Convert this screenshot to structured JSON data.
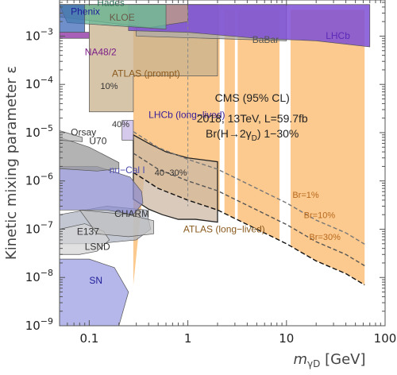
{
  "chart_data": {
    "type": "area",
    "title": "",
    "xlabel": "m_{γD} [GeV]",
    "ylabel": "Kinetic mixing parameter ε",
    "xscale": "log",
    "yscale": "log",
    "xlim": [
      0.05,
      100
    ],
    "ylim": [
      1e-09,
      0.0056
    ],
    "grid": false,
    "x_ticks": [
      {
        "value": 0.1,
        "label": "0.1"
      },
      {
        "value": 1,
        "label": "1"
      },
      {
        "value": 10,
        "label": "10"
      },
      {
        "value": 100,
        "label": "100"
      }
    ],
    "y_ticks": [
      {
        "value": 1e-09,
        "base": "10",
        "exp": "−9"
      },
      {
        "value": 1e-08,
        "base": "10",
        "exp": "−8"
      },
      {
        "value": 1e-07,
        "base": "10",
        "exp": "−7"
      },
      {
        "value": 1e-06,
        "base": "10",
        "exp": "−6"
      },
      {
        "value": 1e-05,
        "base": "10",
        "exp": "−5"
      },
      {
        "value": 0.0001,
        "base": "10",
        "exp": "−4"
      },
      {
        "value": 0.001,
        "base": "10",
        "exp": "−3"
      }
    ],
    "annotation_text": {
      "cms_title": "CMS (95% CL)",
      "cms_line2": "2018, 13TeV, L=59.7fb",
      "cms_line3": "Br(H→2γ",
      "cms_line3_sub": "D",
      "cms_line3_tail": ") 1−30%"
    },
    "series": [
      {
        "name": "CMS Br 1–30%",
        "kind": "band",
        "color": "#fbbf7a",
        "segments": [
          [
            0.28,
            2.1
          ],
          [
            2.35,
            3.0
          ],
          [
            3.2,
            8.5
          ],
          [
            11.0,
            62.0
          ]
        ],
        "upper": 0.0035,
        "lower_Br30": [
          [
            0.28,
            1.5e-06
          ],
          [
            0.5,
            7e-07
          ],
          [
            1,
            4e-07
          ],
          [
            2,
            2.5e-07
          ],
          [
            5,
            1e-07
          ],
          [
            10,
            5e-08
          ],
          [
            20,
            2.2e-08
          ],
          [
            40,
            1.2e-08
          ],
          [
            62,
            7e-09
          ]
        ]
      },
      {
        "name": "ATLAS (prompt)",
        "kind": "region",
        "color": "#c9b28e",
        "points": [
          [
            0.1,
            0.0045
          ],
          [
            0.1,
            2.7e-05
          ],
          [
            0.28,
            2.7e-05
          ],
          [
            0.28,
            0.00015
          ],
          [
            2.0,
            0.00015
          ],
          [
            2.0,
            0.0045
          ]
        ]
      },
      {
        "name": "LHCb (long-lived)",
        "kind": "region",
        "color": "#c8b8e6",
        "points": [
          [
            0.215,
            1.8e-05
          ],
          [
            0.28,
            1.8e-05
          ],
          [
            0.28,
            7e-06
          ],
          [
            0.215,
            7e-06
          ]
        ]
      },
      {
        "name": "ATLAS (long-lived)",
        "kind": "region",
        "color": "#cdb8a4",
        "points": [
          [
            0.28,
            9e-06
          ],
          [
            0.4,
            6e-06
          ],
          [
            0.6,
            4e-06
          ],
          [
            1,
            3e-06
          ],
          [
            2,
            2.5e-06
          ],
          [
            2,
            1.4e-07
          ],
          [
            1.2,
            1.6e-07
          ],
          [
            0.8,
            1.6e-07
          ],
          [
            0.55,
            2e-07
          ],
          [
            0.4,
            2.6e-07
          ],
          [
            0.28,
            4.2e-07
          ]
        ]
      },
      {
        "name": "E137",
        "kind": "region",
        "color": "#aeb4c2",
        "points": [
          [
            0.05,
            2e-07
          ],
          [
            0.15,
            3e-07
          ],
          [
            0.38,
            2.5e-07
          ],
          [
            0.42,
            1e-07
          ],
          [
            0.3,
            6e-08
          ],
          [
            0.12,
            5e-08
          ],
          [
            0.05,
            5e-08
          ]
        ]
      },
      {
        "name": "LSND",
        "kind": "region",
        "color": "#d6d6d6",
        "points": [
          [
            0.05,
            1e-07
          ],
          [
            0.09,
            1.3e-07
          ],
          [
            0.14,
            9e-08
          ],
          [
            0.16,
            6e-08
          ],
          [
            0.12,
            3.5e-08
          ],
          [
            0.08,
            3e-08
          ],
          [
            0.05,
            3e-08
          ]
        ]
      },
      {
        "name": "CHARM",
        "kind": "region",
        "color": "#c0c0c0",
        "points": [
          [
            0.08,
            2.5e-07
          ],
          [
            0.25,
            2e-07
          ],
          [
            0.45,
            1.5e-07
          ],
          [
            0.45,
            8e-08
          ],
          [
            0.25,
            7e-08
          ],
          [
            0.12,
            8e-08
          ]
        ]
      },
      {
        "name": "nu-Cal I",
        "kind": "region",
        "color": "#8d8fd0",
        "points": [
          [
            0.05,
            2e-06
          ],
          [
            0.12,
            2e-06
          ],
          [
            0.26,
            1.2e-06
          ],
          [
            0.34,
            6e-07
          ],
          [
            0.35,
            3.5e-07
          ],
          [
            0.28,
            2e-07
          ],
          [
            0.15,
            2.5e-07
          ],
          [
            0.05,
            2.5e-07
          ]
        ]
      },
      {
        "name": "U70",
        "kind": "region",
        "color": "#9a9a9a",
        "points": [
          [
            0.05,
            8e-06
          ],
          [
            0.1,
            5e-06
          ],
          [
            0.2,
            2.4e-06
          ],
          [
            0.2,
            1.8e-06
          ],
          [
            0.12,
            1.6e-06
          ],
          [
            0.05,
            1.8e-06
          ]
        ]
      },
      {
        "name": "Orsay",
        "kind": "region",
        "color": "#b8b8b8",
        "points": [
          [
            0.05,
            1.1e-05
          ],
          [
            0.085,
            8e-06
          ],
          [
            0.085,
            6.5e-06
          ],
          [
            0.05,
            7e-06
          ]
        ]
      },
      {
        "name": "SN",
        "kind": "region",
        "color": "#9c9ee2",
        "points": [
          [
            0.05,
            2.4e-08
          ],
          [
            0.1,
            2.4e-08
          ],
          [
            0.18,
            1.6e-08
          ],
          [
            0.25,
            5e-09
          ],
          [
            0.2,
            1e-09
          ],
          [
            0.05,
            1e-09
          ]
        ]
      },
      {
        "name": "BaBar",
        "kind": "region",
        "color": "#aaaaaa",
        "points": [
          [
            0.3,
            0.001
          ],
          [
            10,
            0.0008
          ],
          [
            10,
            0.0045
          ],
          [
            0.3,
            0.0045
          ]
        ]
      },
      {
        "name": "LHCb",
        "kind": "region",
        "color": "#7e4fd6",
        "points": [
          [
            0.25,
            0.0013
          ],
          [
            1,
            0.0012
          ],
          [
            5,
            0.0009
          ],
          [
            20,
            0.0008
          ],
          [
            70,
            0.0006
          ],
          [
            70,
            0.0045
          ],
          [
            0.25,
            0.0045
          ]
        ]
      },
      {
        "name": "NA48/2",
        "kind": "region",
        "color": "#8a2aa0",
        "points": [
          [
            0.05,
            0.0009
          ],
          [
            0.1,
            0.0009
          ],
          [
            0.1,
            0.0012
          ],
          [
            0.05,
            0.0012
          ]
        ]
      },
      {
        "name": "KLOE",
        "kind": "region",
        "color": "#c0a080",
        "points": [
          [
            0.05,
            0.0025
          ],
          [
            0.4,
            0.0015
          ],
          [
            1,
            0.002
          ],
          [
            1,
            0.0045
          ],
          [
            0.05,
            0.0045
          ]
        ]
      },
      {
        "name": "Phenix",
        "kind": "region",
        "color": "#3d6ab8",
        "points": [
          [
            0.05,
            0.0012
          ],
          [
            0.09,
            0.0012
          ],
          [
            0.09,
            0.0045
          ],
          [
            0.05,
            0.0045
          ]
        ]
      },
      {
        "name": "Hades",
        "kind": "region",
        "color": "#66bb99",
        "points": [
          [
            0.05,
            0.0045
          ],
          [
            0.06,
            0.0019
          ],
          [
            0.6,
            0.0014
          ],
          [
            0.6,
            0.0045
          ]
        ]
      }
    ],
    "curve_labels": [
      {
        "text": "10%",
        "x": 0.13,
        "y": 8e-05
      },
      {
        "text": "40%",
        "x": 0.17,
        "y": 1.3e-05
      },
      {
        "text": "40~30%",
        "x": 0.46,
        "y": 1.3e-06
      },
      {
        "text": "Br=1%",
        "x": 11.5,
        "y": 4.5e-07
      },
      {
        "text": "Br=10%",
        "x": 15,
        "y": 1.7e-07
      },
      {
        "text": "Br=30%",
        "x": 17,
        "y": 6e-08
      }
    ],
    "region_labels": [
      {
        "text": "Phenix",
        "x": 0.065,
        "y": 0.0028,
        "color": "#1e1e9a"
      },
      {
        "text": "Hades",
        "x": 0.12,
        "y": 0.0042,
        "color": "#2c6e53"
      },
      {
        "text": "KLOE",
        "x": 0.16,
        "y": 0.0021,
        "color": "#6b5a48"
      },
      {
        "text": "NA48/2",
        "x": 0.09,
        "y": 0.0004,
        "color": "#7b1e86"
      },
      {
        "text": "BaBar",
        "x": 4.5,
        "y": 0.00072,
        "color": "#555555"
      },
      {
        "text": "LHCb",
        "x": 25,
        "y": 0.00088,
        "color": "#5a2ab8"
      },
      {
        "text": "ATLAS (prompt)",
        "x": 0.17,
        "y": 0.000145,
        "color": "#8a5a1e"
      },
      {
        "text": "LHCb (long−lived)",
        "x": 0.4,
        "y": 2e-05,
        "color": "#3a1e9a"
      },
      {
        "text": "Orsay",
        "x": 0.065,
        "y": 8.8e-06,
        "color": "#333333"
      },
      {
        "text": "U70",
        "x": 0.1,
        "y": 5.8e-06,
        "color": "#333333"
      },
      {
        "text": "nu−Cal I",
        "x": 0.16,
        "y": 1.45e-06,
        "color": "#4a4ab0"
      },
      {
        "text": "CHARM",
        "x": 0.18,
        "y": 1.8e-07,
        "color": "#333333"
      },
      {
        "text": "ATLAS (long−lived)",
        "x": 0.9,
        "y": 8.6e-08,
        "color": "#8a5a1e"
      },
      {
        "text": "E137",
        "x": 0.075,
        "y": 7.6e-08,
        "color": "#333333"
      },
      {
        "text": "LSND",
        "x": 0.09,
        "y": 3.7e-08,
        "color": "#333333"
      },
      {
        "text": "SN",
        "x": 0.1,
        "y": 7.5e-09,
        "color": "#1e1e9a"
      }
    ]
  }
}
